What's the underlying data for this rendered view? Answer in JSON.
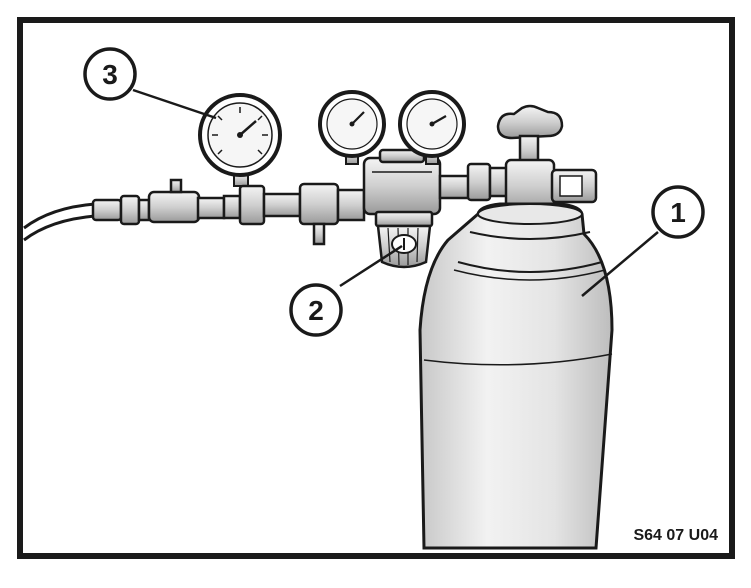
{
  "figure": {
    "code": "S64 07 U04",
    "callouts": [
      {
        "id": "cylinder",
        "label": "1"
      },
      {
        "id": "regulator-knob",
        "label": "2"
      },
      {
        "id": "gauge",
        "label": "3"
      }
    ]
  },
  "colors": {
    "ink": "#1a1a1a",
    "paper": "#ffffff",
    "shade": "#d9d9d9",
    "light": "#eeeeee"
  }
}
